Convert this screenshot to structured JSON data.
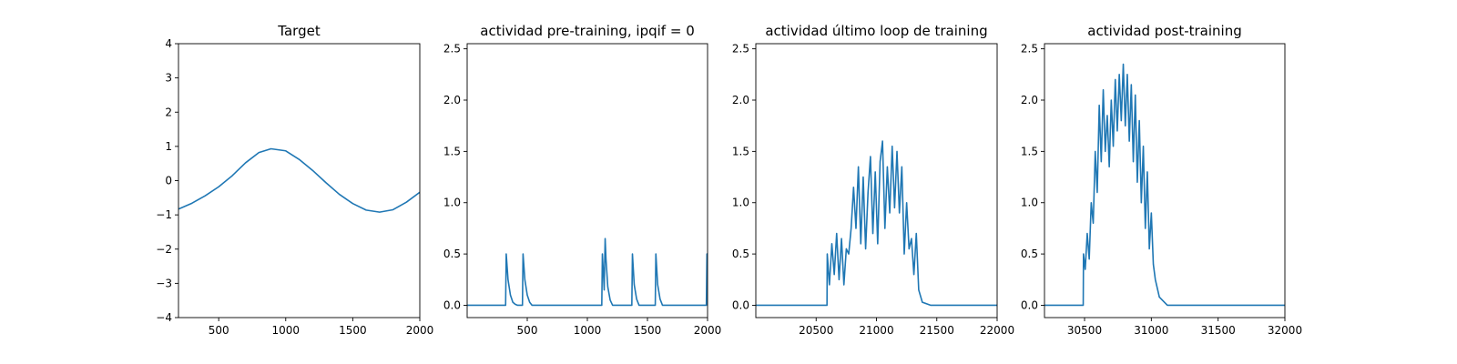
{
  "chart_data": [
    {
      "type": "line",
      "title": "Target",
      "xlim": [
        200,
        2000
      ],
      "ylim": [
        -4,
        4
      ],
      "xticks": [
        500,
        1000,
        1500,
        2000
      ],
      "yticks": [
        -4,
        -3,
        -2,
        -1,
        0,
        1,
        2,
        3,
        4
      ],
      "series": [
        {
          "color": "#1f77b4",
          "x": [
            200,
            300,
            400,
            500,
            600,
            700,
            800,
            890,
            1000,
            1100,
            1200,
            1300,
            1400,
            1500,
            1600,
            1700,
            1800,
            1900,
            2000
          ],
          "y": [
            -0.83,
            -0.66,
            -0.44,
            -0.18,
            0.14,
            0.52,
            0.82,
            0.93,
            0.87,
            0.62,
            0.3,
            -0.06,
            -0.4,
            -0.67,
            -0.86,
            -0.92,
            -0.85,
            -0.63,
            -0.34
          ]
        }
      ]
    },
    {
      "type": "line",
      "title": "actividad pre-training, ipqif = 0",
      "xlim": [
        0,
        2000
      ],
      "ylim": [
        -0.12,
        2.55
      ],
      "xticks": [
        500,
        1000,
        1500,
        2000
      ],
      "yticks": [
        0.0,
        0.5,
        1.0,
        1.5,
        2.0,
        2.5
      ],
      "series": [
        {
          "color": "#1f77b4",
          "x": [
            0,
            320,
            325,
            340,
            360,
            380,
            400,
            420,
            460,
            465,
            480,
            500,
            520,
            540,
            1120,
            1125,
            1135,
            1140,
            1148,
            1155,
            1170,
            1190,
            1210,
            1370,
            1375,
            1390,
            1410,
            1430,
            1565,
            1570,
            1585,
            1605,
            1625,
            1990,
            1995,
            2000
          ],
          "y": [
            0,
            0,
            0.5,
            0.25,
            0.1,
            0.03,
            0.01,
            0,
            0,
            0.5,
            0.25,
            0.1,
            0.03,
            0,
            0,
            0.5,
            0.28,
            0.15,
            0.65,
            0.45,
            0.18,
            0.05,
            0,
            0,
            0.5,
            0.2,
            0.06,
            0,
            0,
            0.5,
            0.2,
            0.06,
            0,
            0,
            0.5,
            0.5
          ]
        }
      ]
    },
    {
      "type": "line",
      "title": "actividad último loop de training",
      "xlim": [
        20000,
        22000
      ],
      "ylim": [
        -0.12,
        2.55
      ],
      "xticks": [
        20500,
        21000,
        21500,
        22000
      ],
      "yticks": [
        0.0,
        0.5,
        1.0,
        1.5,
        2.0,
        2.5
      ],
      "series": [
        {
          "color": "#1f77b4",
          "x": [
            20000,
            20590,
            20592,
            20610,
            20630,
            20650,
            20670,
            20690,
            20710,
            20730,
            20750,
            20770,
            20790,
            20810,
            20830,
            20850,
            20870,
            20890,
            20910,
            20930,
            20950,
            20970,
            20990,
            21010,
            21030,
            21050,
            21070,
            21090,
            21110,
            21130,
            21150,
            21170,
            21190,
            21210,
            21230,
            21250,
            21270,
            21290,
            21310,
            21330,
            21350,
            21380,
            21450,
            22000
          ],
          "y": [
            0,
            0,
            0.5,
            0.2,
            0.6,
            0.3,
            0.7,
            0.25,
            0.65,
            0.2,
            0.55,
            0.5,
            0.75,
            1.15,
            0.75,
            1.35,
            0.6,
            1.25,
            0.55,
            1.1,
            1.45,
            0.7,
            1.3,
            0.6,
            1.4,
            1.6,
            0.75,
            1.35,
            0.9,
            1.55,
            0.95,
            1.5,
            0.9,
            1.35,
            0.5,
            1.0,
            0.55,
            0.65,
            0.3,
            0.7,
            0.15,
            0.03,
            0,
            0
          ]
        }
      ]
    },
    {
      "type": "line",
      "title": "actividad post-training",
      "xlim": [
        30200,
        32000
      ],
      "ylim": [
        -0.12,
        2.55
      ],
      "xticks": [
        30500,
        31000,
        31500,
        32000
      ],
      "yticks": [
        0.0,
        0.5,
        1.0,
        1.5,
        2.0,
        2.5
      ],
      "series": [
        {
          "color": "#1f77b4",
          "x": [
            30200,
            30490,
            30492,
            30505,
            30520,
            30535,
            30550,
            30565,
            30580,
            30595,
            30610,
            30625,
            30640,
            30655,
            30670,
            30685,
            30700,
            30715,
            30730,
            30745,
            30760,
            30775,
            30790,
            30805,
            30820,
            30835,
            30850,
            30865,
            30880,
            30895,
            30910,
            30925,
            30940,
            30955,
            30970,
            30985,
            31000,
            31015,
            31030,
            31060,
            31120,
            32000
          ],
          "y": [
            0,
            0,
            0.5,
            0.35,
            0.7,
            0.45,
            1.0,
            0.8,
            1.5,
            1.1,
            1.95,
            1.4,
            2.1,
            1.5,
            1.85,
            1.35,
            2.0,
            1.55,
            2.2,
            1.7,
            2.25,
            1.8,
            2.35,
            1.75,
            2.25,
            1.6,
            2.15,
            1.4,
            2.05,
            1.2,
            1.8,
            1.0,
            1.55,
            0.75,
            1.3,
            0.55,
            0.9,
            0.4,
            0.25,
            0.08,
            0,
            0
          ]
        }
      ]
    }
  ]
}
